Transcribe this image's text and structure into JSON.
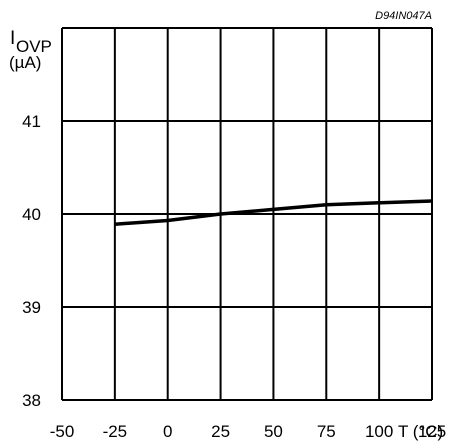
{
  "chart_data": {
    "type": "line",
    "reference_code": "D94IN047A",
    "ylabel": {
      "main": "I",
      "sub": "OVP",
      "unit": "(µA)"
    },
    "xlabel": "T (°C)",
    "xlim": [
      -50,
      125
    ],
    "ylim": [
      38,
      42
    ],
    "x_ticks": [
      "-50",
      "-25",
      "0",
      "25",
      "50",
      "75",
      "100",
      "125"
    ],
    "y_ticks": [
      "38",
      "39",
      "40",
      "41"
    ],
    "y_tick_values": [
      38,
      39,
      40,
      41
    ],
    "grid": true,
    "series": [
      {
        "x": [
          -25,
          0,
          25,
          50,
          75,
          100,
          125
        ],
        "y": [
          39.89,
          39.93,
          40.0,
          40.05,
          40.1,
          40.12,
          40.14
        ]
      }
    ],
    "line_color": "#000000"
  }
}
